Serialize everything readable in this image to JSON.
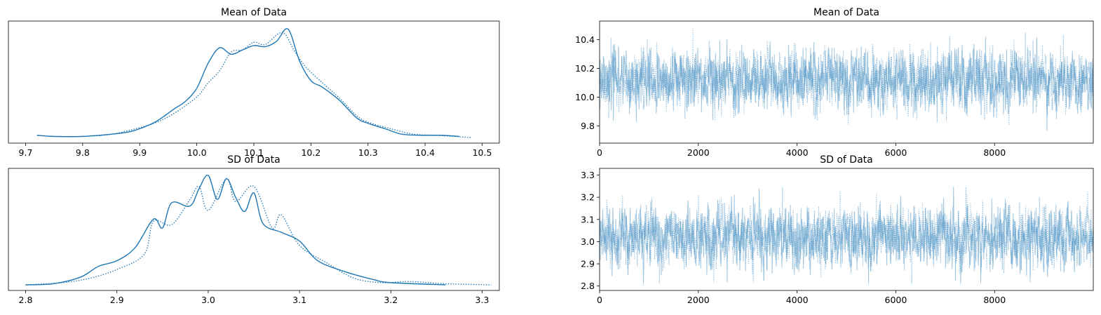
{
  "chart_data": [
    {
      "type": "line",
      "title": "Mean of Data",
      "subtype": "kde",
      "xlabel": "",
      "ylabel": "",
      "xlim": [
        9.7,
        10.5
      ],
      "x_ticks": [
        "9.7",
        "9.8",
        "9.9",
        "10.0",
        "10.1",
        "10.2",
        "10.3",
        "10.4",
        "10.5"
      ],
      "y_ticks": [],
      "grid": false,
      "color": "#1f77b4",
      "series": [
        {
          "style": "solid",
          "x": [
            9.72,
            9.75,
            9.8,
            9.85,
            9.88,
            9.9,
            9.93,
            9.96,
            9.98,
            10.0,
            10.02,
            10.04,
            10.06,
            10.08,
            10.1,
            10.12,
            10.14,
            10.16,
            10.18,
            10.2,
            10.22,
            10.25,
            10.28,
            10.3,
            10.33,
            10.36,
            10.4,
            10.43,
            10.46
          ],
          "y": [
            0.02,
            0.01,
            0.01,
            0.03,
            0.05,
            0.08,
            0.15,
            0.26,
            0.33,
            0.45,
            0.68,
            0.82,
            0.76,
            0.8,
            0.84,
            0.83,
            0.88,
            0.99,
            0.7,
            0.52,
            0.46,
            0.34,
            0.18,
            0.13,
            0.08,
            0.03,
            0.02,
            0.02,
            0.01
          ]
        },
        {
          "style": "dotted",
          "x": [
            9.74,
            9.8,
            9.85,
            9.9,
            9.93,
            9.96,
            10.0,
            10.02,
            10.04,
            10.06,
            10.08,
            10.1,
            10.12,
            10.15,
            10.17,
            10.19,
            10.22,
            10.25,
            10.28,
            10.3,
            10.34,
            10.38,
            10.42,
            10.48
          ],
          "y": [
            0.01,
            0.01,
            0.03,
            0.09,
            0.14,
            0.22,
            0.37,
            0.5,
            0.61,
            0.78,
            0.8,
            0.87,
            0.85,
            0.96,
            0.8,
            0.65,
            0.5,
            0.36,
            0.2,
            0.14,
            0.08,
            0.03,
            0.02,
            0.0
          ]
        }
      ]
    },
    {
      "type": "line",
      "title": "Mean of Data",
      "subtype": "trace",
      "xlabel": "",
      "ylabel": "",
      "xlim": [
        0,
        9999
      ],
      "ylim": [
        9.68,
        10.53
      ],
      "x_ticks": [
        "0",
        "2000",
        "4000",
        "6000",
        "8000"
      ],
      "y_ticks": [
        "9.8",
        "10.0",
        "10.2",
        "10.4"
      ],
      "grid": false,
      "n_draws": 10000,
      "center": 10.12,
      "spread": 0.1,
      "min": 9.72,
      "max": 10.48,
      "color": "#1f77b4",
      "series": [
        {
          "style": "solid"
        },
        {
          "style": "dotted"
        }
      ]
    },
    {
      "type": "line",
      "title": "SD of Data",
      "subtype": "kde",
      "xlabel": "",
      "ylabel": "",
      "xlim": [
        2.8,
        3.3
      ],
      "x_ticks": [
        "2.8",
        "2.9",
        "3.0",
        "3.1",
        "3.2",
        "3.3"
      ],
      "y_ticks": [],
      "grid": false,
      "color": "#1f77b4",
      "series": [
        {
          "style": "solid",
          "x": [
            2.8,
            2.83,
            2.86,
            2.88,
            2.9,
            2.92,
            2.94,
            2.95,
            2.96,
            2.98,
            2.99,
            3.0,
            3.01,
            3.02,
            3.03,
            3.04,
            3.05,
            3.06,
            3.08,
            3.1,
            3.12,
            3.15,
            3.18,
            3.2,
            3.26
          ],
          "y": [
            0.0,
            0.01,
            0.07,
            0.17,
            0.22,
            0.34,
            0.6,
            0.52,
            0.75,
            0.72,
            0.88,
            1.0,
            0.78,
            0.97,
            0.8,
            0.67,
            0.84,
            0.56,
            0.48,
            0.4,
            0.22,
            0.12,
            0.05,
            0.02,
            0.0
          ]
        },
        {
          "style": "dotted",
          "x": [
            2.8,
            2.84,
            2.87,
            2.9,
            2.93,
            2.94,
            2.96,
            2.98,
            2.99,
            3.0,
            3.02,
            3.03,
            3.05,
            3.07,
            3.08,
            3.1,
            3.13,
            3.16,
            3.19,
            3.22,
            3.26,
            3.31
          ],
          "y": [
            0.0,
            0.02,
            0.06,
            0.14,
            0.28,
            0.58,
            0.55,
            0.78,
            0.9,
            0.68,
            0.97,
            0.76,
            0.9,
            0.52,
            0.64,
            0.36,
            0.2,
            0.06,
            0.02,
            0.03,
            0.01,
            0.0
          ]
        }
      ]
    },
    {
      "type": "line",
      "title": "SD of Data",
      "subtype": "trace",
      "xlabel": "",
      "ylabel": "",
      "xlim": [
        0,
        9999
      ],
      "ylim": [
        2.78,
        3.33
      ],
      "x_ticks": [
        "0",
        "2000",
        "4000",
        "6000",
        "8000"
      ],
      "y_ticks": [
        "2.8",
        "2.9",
        "3.0",
        "3.1",
        "3.2",
        "3.3"
      ],
      "grid": false,
      "n_draws": 10000,
      "center": 3.02,
      "spread": 0.065,
      "min": 2.81,
      "max": 3.3,
      "color": "#1f77b4",
      "series": [
        {
          "style": "solid"
        },
        {
          "style": "dotted"
        }
      ]
    }
  ]
}
